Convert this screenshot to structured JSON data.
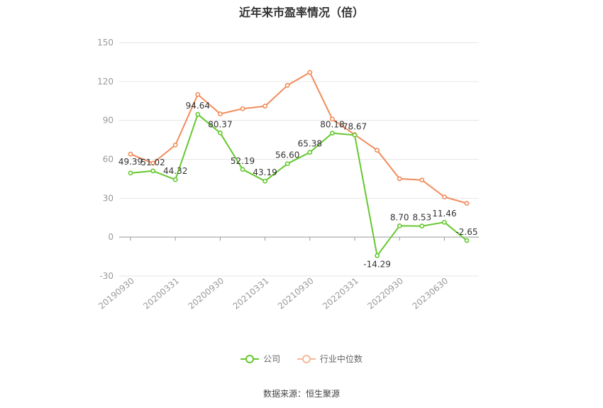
{
  "chart_data": {
    "type": "line",
    "title": "近年来市盈率情况（倍）",
    "source": "数据来源：恒生聚源",
    "ylim": [
      -30,
      150
    ],
    "yticks": [
      150,
      120,
      90,
      60,
      30,
      0,
      -30
    ],
    "xtick_labels": [
      "20190930",
      "20200331",
      "20200930",
      "20210331",
      "20210930",
      "20220331",
      "20220930",
      "20230630"
    ],
    "grid": true,
    "legend_position": "bottom-center",
    "series": [
      {
        "name": "公司",
        "color": "#65c82e",
        "values": [
          49.39,
          51.02,
          44.32,
          94.64,
          80.37,
          52.19,
          43.19,
          56.6,
          65.38,
          80.18,
          78.67,
          -14.29,
          8.7,
          8.53,
          11.46,
          -2.65
        ],
        "labels": [
          "49.39",
          "51.02",
          "44.32",
          "94.64",
          "80.37",
          "52.19",
          "43.19",
          "56.60",
          "65.38",
          "80.18",
          "78.67",
          "-14.29",
          "8.70",
          "8.53",
          "11.46",
          "-2.65"
        ]
      },
      {
        "name": "行业中位数",
        "color": "#f28b5b",
        "values": [
          64,
          57,
          71,
          110,
          95,
          99,
          101,
          117,
          127,
          91,
          79,
          67,
          45,
          44,
          31,
          26
        ]
      }
    ]
  }
}
